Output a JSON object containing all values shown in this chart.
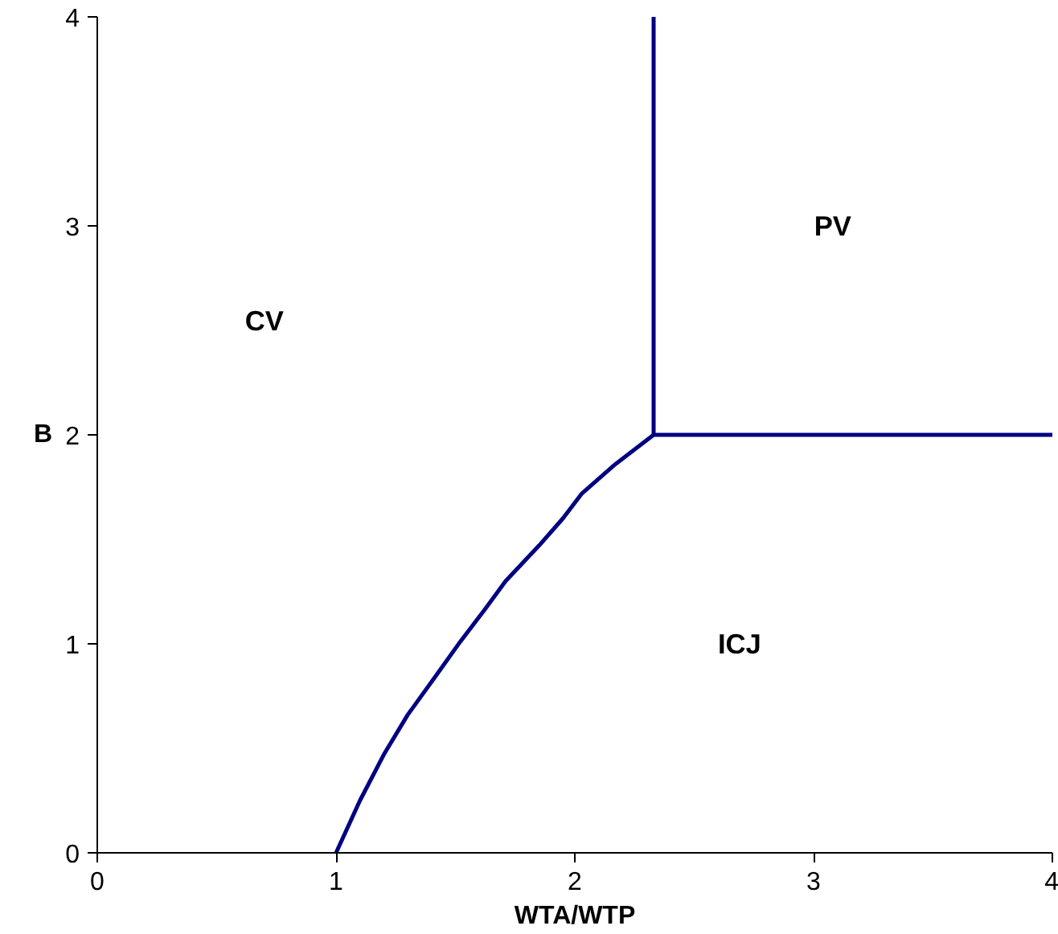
{
  "chart_data": {
    "type": "line",
    "xlabel": "WTA/WTP",
    "ylabel": "B",
    "xlim": [
      0,
      4
    ],
    "ylim": [
      0,
      4
    ],
    "xticks": [
      0,
      1,
      2,
      3,
      4
    ],
    "yticks": [
      0,
      1,
      2,
      3,
      4
    ],
    "grid": false,
    "marker": "none",
    "line_style": "solid",
    "series": [
      {
        "color": "#000080",
        "x": [
          1,
          1.1,
          1.2,
          1.3,
          1.42,
          1.52,
          1.62,
          1.71,
          1.85,
          1.95,
          2.03,
          2.17,
          2.33
        ],
        "values": [
          0,
          0.25,
          0.47,
          0.66,
          0.85,
          1.01,
          1.16,
          1.3,
          1.47,
          1.6,
          1.72,
          1.86,
          2
        ]
      },
      {
        "color": "#000080",
        "x": [
          2.33,
          2.33
        ],
        "values": [
          2,
          4
        ]
      },
      {
        "color": "#000080",
        "x": [
          2.33,
          4
        ],
        "values": [
          2,
          2
        ]
      }
    ],
    "annotations": [
      "CV",
      "PV",
      "ICJ"
    ]
  }
}
